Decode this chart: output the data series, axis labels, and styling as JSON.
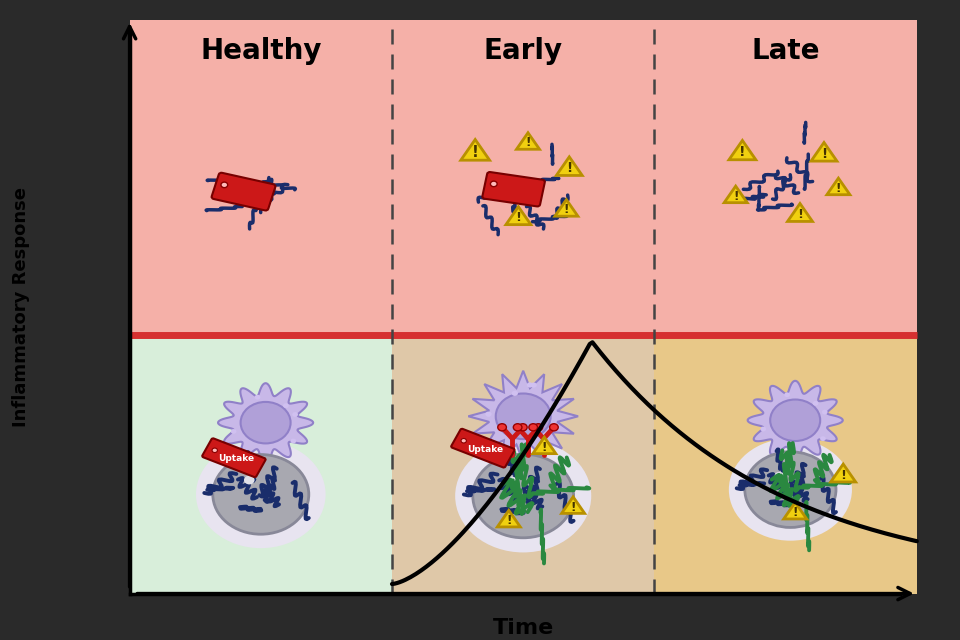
{
  "bg_color": "#2a2a2a",
  "top_row_color": "#f5b0a8",
  "top_divider_color": "#d63030",
  "healthy_bottom_color": "#d8eeda",
  "early_bottom_color": "#dfc8a8",
  "late_bottom_color": "#e8c888",
  "section_labels": [
    "Healthy",
    "Early",
    "Late"
  ],
  "ylabel": "Inflammatory Response",
  "xlabel": "Time",
  "dark_blue": "#1a2d6b",
  "cell_purple_light": "#c8b8e8",
  "cell_purple_mid": "#b0a0d8",
  "cell_purple_dark": "#9080c8",
  "gray_body": "#a8a8b0",
  "gray_dark": "#888898",
  "gray_glow": "#dcdce8",
  "green_strand": "#2a8840",
  "red_tag": "#cc1818",
  "red_receptor": "#dd2222",
  "warning_yellow": "#f0d010",
  "warning_outline": "#b89000",
  "white_bg": "#ffffff"
}
